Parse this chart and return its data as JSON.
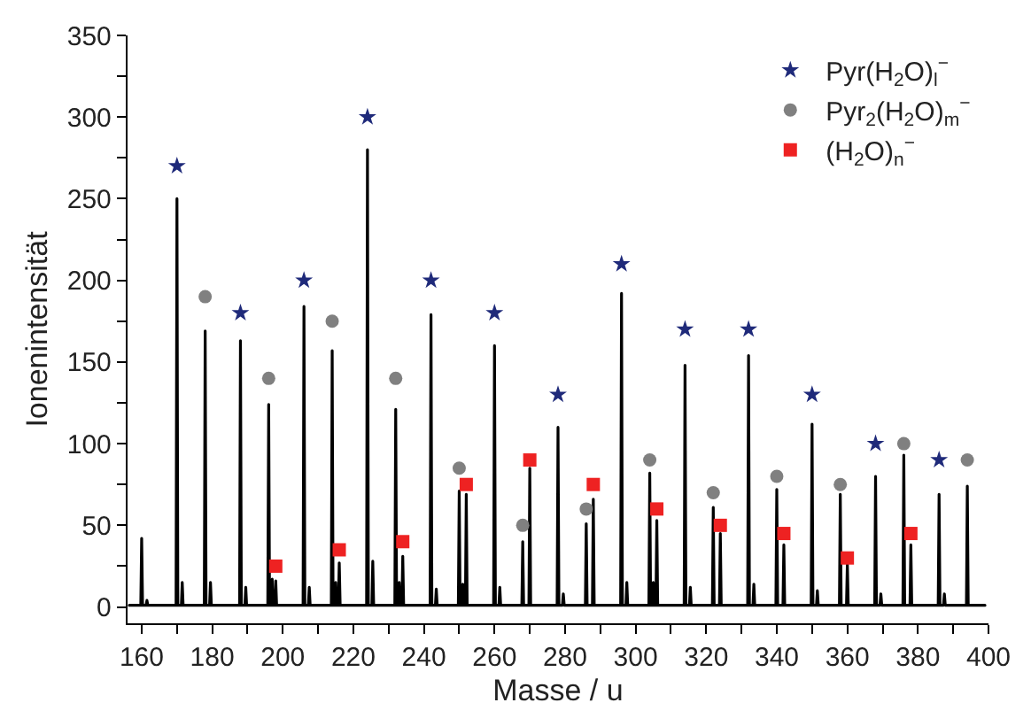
{
  "chart_data": {
    "type": "line",
    "xlabel": "Masse / u",
    "ylabel": "Ionenintensität",
    "xlim": [
      156,
      400
    ],
    "ylim": [
      -10,
      350
    ],
    "xticks": [
      160,
      {
        "value": 170,
        "label": null
      },
      180,
      {
        "value": 190,
        "label": null
      },
      200,
      {
        "value": 210,
        "label": null
      },
      220,
      {
        "value": 230,
        "label": null
      },
      240,
      {
        "value": 250,
        "label": null
      },
      260,
      {
        "value": 270,
        "label": null
      },
      280,
      {
        "value": 290,
        "label": null
      },
      300,
      {
        "value": 310,
        "label": null
      },
      320,
      {
        "value": 330,
        "label": null
      },
      340,
      {
        "value": 350,
        "label": null
      },
      360,
      {
        "value": 370,
        "label": null
      },
      380,
      {
        "value": 390,
        "label": null
      },
      400
    ],
    "yticks": [
      0,
      {
        "value": 25,
        "label": null
      },
      50,
      {
        "value": 75,
        "label": null
      },
      100,
      {
        "value": 125,
        "label": null
      },
      150,
      {
        "value": 175,
        "label": null
      },
      200,
      {
        "value": 225,
        "label": null
      },
      250,
      {
        "value": 275,
        "label": null
      },
      300,
      {
        "value": 325,
        "label": null
      },
      350
    ],
    "legend": "top right",
    "series": [
      {
        "color": "#000000",
        "line_style": "solid",
        "x": [
          156.5,
          159.75,
          160,
          160.25,
          161.25,
          161.5,
          161.75,
          169.75,
          170,
          170.25,
          171.25,
          171.5,
          171.75,
          177.75,
          178,
          178.25,
          179.25,
          179.5,
          179.75,
          187.75,
          188,
          188.25,
          189.25,
          189.5,
          189.75,
          195.75,
          196,
          196.25,
          196.75,
          197,
          197.25,
          197.75,
          198,
          198.25,
          205.75,
          206,
          206.25,
          207.25,
          207.5,
          207.75,
          213.75,
          214,
          214.25,
          214.75,
          215,
          215.25,
          215.75,
          216,
          216.25,
          223.75,
          224,
          224.25,
          225.25,
          225.5,
          225.75,
          231.75,
          232,
          232.25,
          232.75,
          233,
          233.25,
          233.75,
          234,
          234.25,
          241.75,
          242,
          242.25,
          243.25,
          243.5,
          243.75,
          249.75,
          250,
          250.25,
          250.75,
          251,
          251.25,
          251.75,
          252,
          252.25,
          259.75,
          260,
          260.25,
          261.25,
          261.5,
          261.75,
          267.75,
          268,
          268.25,
          269.75,
          270,
          270.25,
          277.75,
          278,
          278.25,
          279.25,
          279.5,
          279.75,
          285.75,
          286,
          286.25,
          287.75,
          288,
          288.25,
          295.75,
          296,
          296.25,
          297.25,
          297.5,
          297.75,
          303.75,
          304,
          304.25,
          304.75,
          305,
          305.25,
          305.75,
          306,
          306.25,
          313.75,
          314,
          314.25,
          315.25,
          315.5,
          315.75,
          321.75,
          322,
          322.25,
          323.75,
          324,
          324.25,
          331.75,
          332,
          332.25,
          333.25,
          333.5,
          333.75,
          339.75,
          340,
          340.25,
          341.75,
          342,
          342.25,
          349.75,
          350,
          350.25,
          351.25,
          351.5,
          351.75,
          357.75,
          358,
          358.25,
          359.75,
          360,
          360.25,
          367.75,
          368,
          368.25,
          369.25,
          369.5,
          369.75,
          375.75,
          376,
          376.25,
          377.75,
          378,
          378.25,
          385.75,
          386,
          386.25,
          387.25,
          387.5,
          387.75,
          393.75,
          394,
          394.25,
          399
        ],
        "values": [
          1,
          1,
          42,
          1,
          1,
          4,
          1,
          1,
          250,
          1,
          1,
          15,
          1,
          1,
          169,
          1,
          1,
          15,
          1,
          1,
          163,
          1,
          1,
          12,
          1,
          1,
          124,
          1,
          1,
          17,
          1,
          1,
          16,
          1,
          1,
          184,
          1,
          1,
          12,
          1,
          1,
          157,
          1,
          1,
          15,
          1,
          1,
          27,
          1,
          1,
          280,
          1,
          1,
          28,
          1,
          1,
          121,
          1,
          1,
          15,
          1,
          1,
          31,
          1,
          1,
          179,
          1,
          1,
          11,
          1,
          1,
          71,
          1,
          1,
          14,
          1,
          1,
          69,
          1,
          1,
          160,
          1,
          1,
          12,
          1,
          1,
          40,
          1,
          1,
          85,
          1,
          1,
          110,
          1,
          1,
          8,
          1,
          1,
          51,
          1,
          1,
          66,
          1,
          1,
          192,
          1,
          1,
          15,
          1,
          1,
          82,
          1,
          1,
          15,
          1,
          1,
          53,
          1,
          1,
          148,
          1,
          1,
          12,
          1,
          1,
          61,
          1,
          1,
          45,
          1,
          1,
          154,
          1,
          1,
          14,
          1,
          1,
          72,
          1,
          1,
          38,
          1,
          1,
          112,
          1,
          1,
          10,
          1,
          1,
          69,
          1,
          1,
          26,
          1,
          1,
          80,
          1,
          1,
          8,
          1,
          1,
          93,
          1,
          1,
          38,
          1,
          1,
          69,
          1,
          1,
          8,
          1,
          1,
          74,
          1,
          1
        ]
      },
      {
        "type": "scatter",
        "name": "Pyr(H$_{2}$O)$_{l}$$^{−}$",
        "color": "#1f2a7a",
        "marker": "star",
        "x": [
          170,
          188,
          206,
          224,
          242,
          260,
          278,
          296,
          314,
          332,
          350,
          368,
          386
        ],
        "values": [
          270,
          180,
          200,
          300,
          200,
          180,
          130,
          210,
          170,
          170,
          130,
          100,
          90
        ]
      },
      {
        "type": "scatter",
        "name": "Pyr$_{2}$(H$_{2}$O)$_{m}$$^{−}$",
        "color": "#808080",
        "marker": "circle",
        "x": [
          178,
          196,
          214,
          232,
          250,
          268,
          286,
          304,
          322,
          340,
          358,
          376,
          394
        ],
        "values": [
          190,
          140,
          175,
          140,
          85,
          50,
          60,
          90,
          70,
          80,
          75,
          100,
          90
        ]
      },
      {
        "type": "scatter",
        "name": "(H$_{2}$O)$_{n}$$^{−}$",
        "color": "#ee2222",
        "marker": "square",
        "x": [
          198,
          216,
          234,
          252,
          270,
          288,
          306,
          324,
          342,
          360,
          378
        ],
        "values": [
          25,
          35,
          40,
          75,
          90,
          75,
          60,
          50,
          45,
          30,
          45
        ]
      }
    ]
  }
}
